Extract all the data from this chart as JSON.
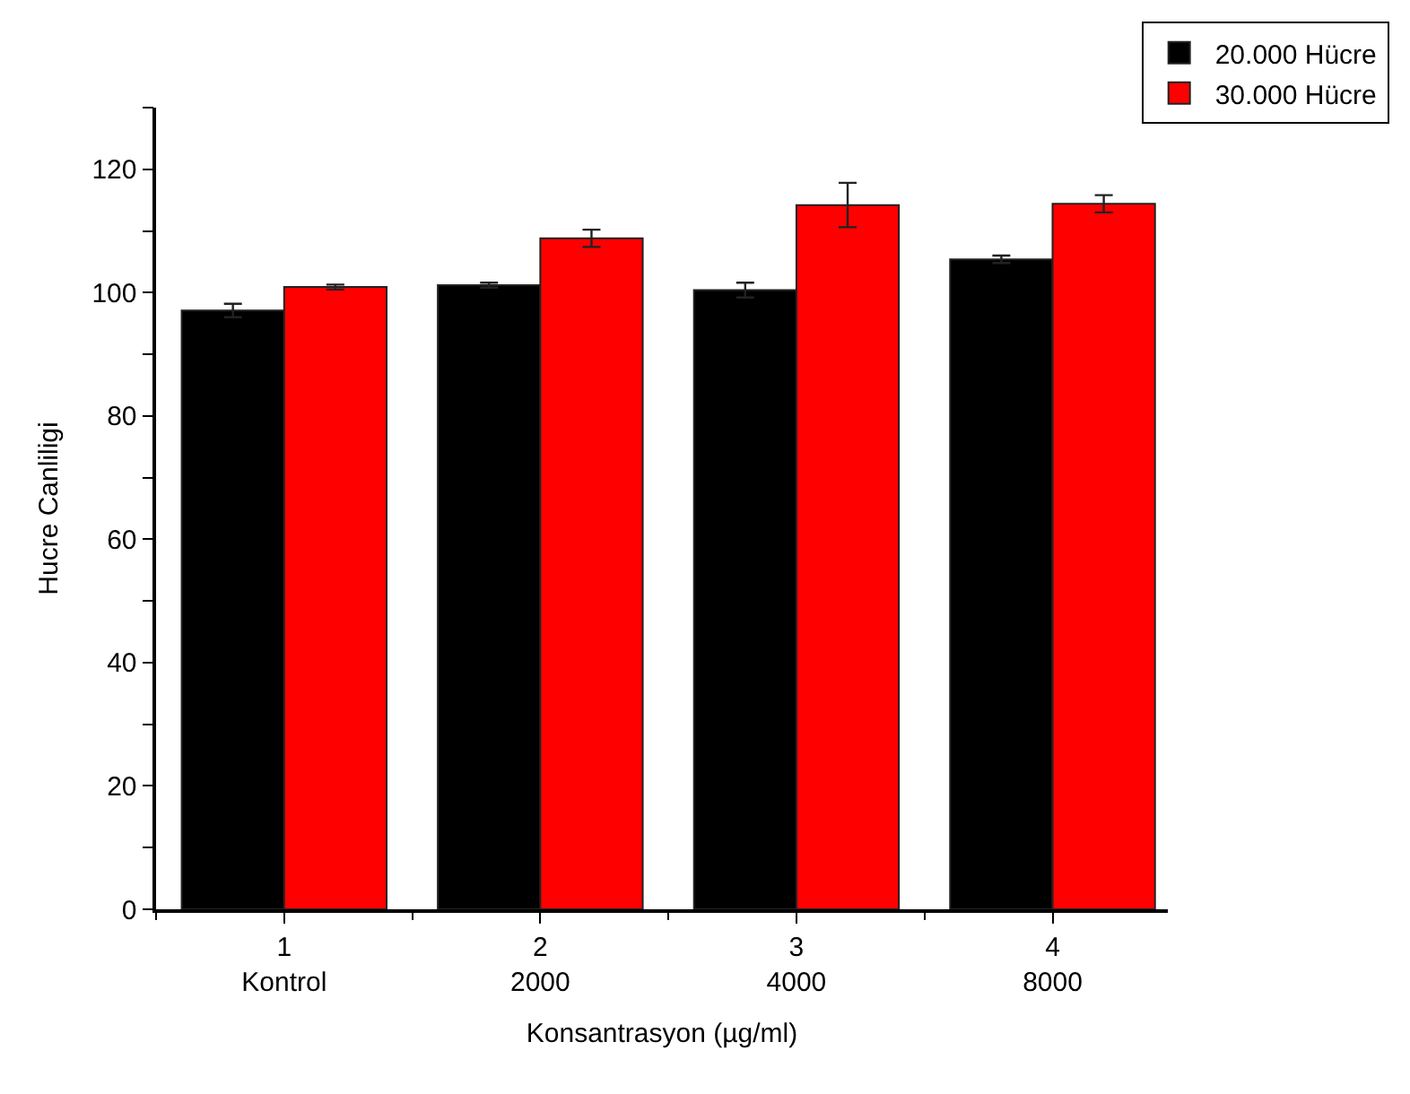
{
  "chart_data": {
    "type": "bar",
    "xlabel": "Konsantrasyon (µg/ml)",
    "ylabel": "Hucre Canliligi",
    "categories": [
      "1\nKontrol",
      "2\n2000",
      "3\n4000",
      "4\n8000"
    ],
    "series": [
      {
        "name": "20.000 Hücre",
        "color": "#000000",
        "values": [
          97.1,
          101.2,
          100.4,
          105.4
        ],
        "errors": [
          1.1,
          0.4,
          1.2,
          0.6
        ]
      },
      {
        "name": "30.000 Hücre",
        "color": "#ff0000",
        "values": [
          100.9,
          108.8,
          114.2,
          114.4
        ],
        "errors": [
          0.4,
          1.4,
          3.6,
          1.4
        ]
      }
    ],
    "ylim": [
      0,
      130
    ],
    "yticks": [
      0,
      {
        "value": 10,
        "label": null
      },
      20,
      {
        "value": 30,
        "label": null
      },
      40,
      {
        "value": 50,
        "label": null
      },
      60,
      {
        "value": 70,
        "label": null
      },
      80,
      {
        "value": 90,
        "label": null
      },
      100,
      {
        "value": 110,
        "label": null
      },
      120,
      {
        "value": 130,
        "label": null
      }
    ],
    "legend": "top right"
  }
}
